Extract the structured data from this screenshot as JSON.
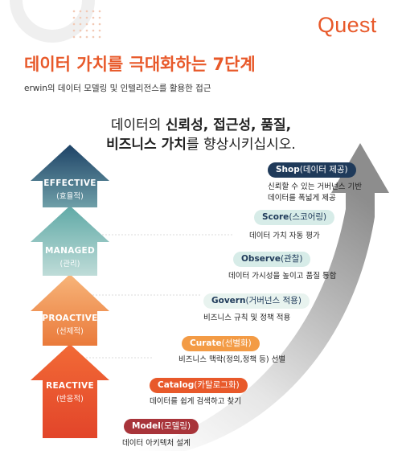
{
  "brand": {
    "logo": "Quest"
  },
  "header": {
    "title": "데이터 가치를 극대화하는 7단계",
    "subtitle": "erwin의 데이터 모델링 및 인텔리전스를 활용한 접근"
  },
  "headline": {
    "prefix": "데이터의 ",
    "bold1": "신뢰성, 접근성, 품질,",
    "bold2": "비즈니스 가치",
    "suffix": "를 향상시키십시오."
  },
  "levels": [
    {
      "en": "EFFECTIVE",
      "ko": "(효율적)"
    },
    {
      "en": "MANAGED",
      "ko": "(관리)"
    },
    {
      "en": "PROACTIVE",
      "ko": "(선제적)"
    },
    {
      "en": "REACTIVE",
      "ko": "(반응적)"
    }
  ],
  "steps": [
    {
      "name": "Shop",
      "ko": "(데이터 제공)",
      "desc": [
        "신뢰할 수 있는 거버넌스 기반",
        "데이터를 폭넓게 제공"
      ],
      "color": "#1f3a5a",
      "text_color": "#ffffff"
    },
    {
      "name": "Score",
      "ko": "(스코어링)",
      "desc": [
        "데이터 가치 자동 평가"
      ],
      "color": "#d7ece8",
      "text_color": "#1f3a5a"
    },
    {
      "name": "Observe",
      "ko": "(관찰)",
      "desc": [
        "데이터 가시성을 높이고 품질 통합"
      ],
      "color": "#d7ece8",
      "text_color": "#1f3a5a"
    },
    {
      "name": "Govern",
      "ko": "(거버넌스 적용)",
      "desc": [
        "비즈니스 규칙 및 정책 적용"
      ],
      "color": "#e8f3ef",
      "text_color": "#1f3a5a"
    },
    {
      "name": "Curate",
      "ko": "(선별화)",
      "desc": [
        "비즈니스 맥락(정의,정책 등) 선별"
      ],
      "color": "#f39b45",
      "text_color": "#ffffff"
    },
    {
      "name": "Catalog",
      "ko": "(카탈로그화)",
      "desc": [
        "데이터를 쉽게 검색하고 찾기"
      ],
      "color": "#e8592a",
      "text_color": "#ffffff"
    },
    {
      "name": "Model",
      "ko": "(모델링)",
      "desc": [
        "데이터 아키텍처 설계"
      ],
      "color": "#a8343a",
      "text_color": "#ffffff"
    }
  ]
}
